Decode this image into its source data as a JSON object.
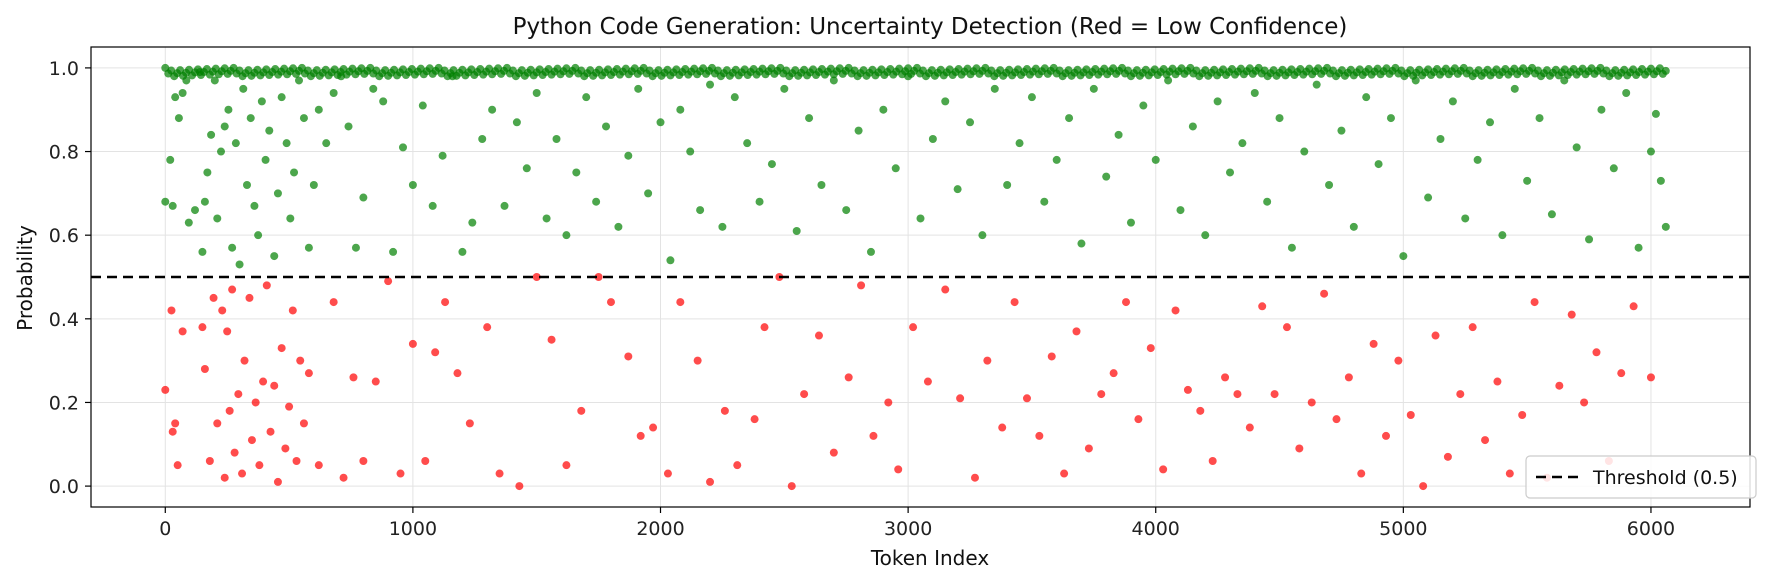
{
  "chart_data": {
    "type": "scatter",
    "title": "Python Code Generation: Uncertainty Detection (Red = Low Confidence)",
    "xlabel": "Token Index",
    "ylabel": "Probability",
    "xlim": [
      -300,
      6400
    ],
    "ylim": [
      -0.05,
      1.05
    ],
    "xticks": [
      0,
      1000,
      2000,
      3000,
      4000,
      5000,
      6000
    ],
    "yticks": [
      0.0,
      0.2,
      0.4,
      0.6,
      0.8,
      1.0
    ],
    "ytick_labels": [
      "0.0",
      "0.2",
      "0.4",
      "0.6",
      "0.8",
      "1.0"
    ],
    "grid": true,
    "threshold": {
      "value": 0.5,
      "label": "Threshold (0.5)",
      "style": "dashed",
      "color": "#000000"
    },
    "legend": {
      "placement": "bottom-right",
      "entries": [
        "Threshold (0.5)"
      ]
    },
    "token_count": 6060,
    "series": [
      {
        "color": "#008000",
        "points": [
          [
            0,
            0.68
          ],
          [
            20,
            0.78
          ],
          [
            30,
            0.67
          ],
          [
            40,
            0.93
          ],
          [
            55,
            0.88
          ],
          [
            70,
            0.94
          ],
          [
            85,
            0.97
          ],
          [
            95,
            0.63
          ],
          [
            120,
            0.66
          ],
          [
            140,
            0.99
          ],
          [
            150,
            0.56
          ],
          [
            160,
            0.68
          ],
          [
            170,
            0.75
          ],
          [
            185,
            0.84
          ],
          [
            200,
            0.97
          ],
          [
            210,
            0.64
          ],
          [
            225,
            0.8
          ],
          [
            240,
            0.86
          ],
          [
            255,
            0.9
          ],
          [
            270,
            0.57
          ],
          [
            285,
            0.82
          ],
          [
            300,
            0.53
          ],
          [
            315,
            0.95
          ],
          [
            330,
            0.72
          ],
          [
            345,
            0.88
          ],
          [
            360,
            0.67
          ],
          [
            375,
            0.6
          ],
          [
            390,
            0.92
          ],
          [
            405,
            0.78
          ],
          [
            420,
            0.85
          ],
          [
            440,
            0.55
          ],
          [
            455,
            0.7
          ],
          [
            470,
            0.93
          ],
          [
            490,
            0.82
          ],
          [
            505,
            0.64
          ],
          [
            520,
            0.75
          ],
          [
            540,
            0.97
          ],
          [
            560,
            0.88
          ],
          [
            580,
            0.57
          ],
          [
            600,
            0.72
          ],
          [
            620,
            0.9
          ],
          [
            650,
            0.82
          ],
          [
            680,
            0.94
          ],
          [
            710,
            0.98
          ],
          [
            740,
            0.86
          ],
          [
            770,
            0.57
          ],
          [
            800,
            0.69
          ],
          [
            840,
            0.95
          ],
          [
            880,
            0.92
          ],
          [
            920,
            0.56
          ],
          [
            960,
            0.81
          ],
          [
            1000,
            0.72
          ],
          [
            1040,
            0.91
          ],
          [
            1080,
            0.67
          ],
          [
            1120,
            0.79
          ],
          [
            1160,
            0.98
          ],
          [
            1200,
            0.56
          ],
          [
            1240,
            0.63
          ],
          [
            1280,
            0.83
          ],
          [
            1320,
            0.9
          ],
          [
            1370,
            0.67
          ],
          [
            1420,
            0.87
          ],
          [
            1460,
            0.76
          ],
          [
            1500,
            0.94
          ],
          [
            1540,
            0.64
          ],
          [
            1580,
            0.83
          ],
          [
            1620,
            0.6
          ],
          [
            1660,
            0.75
          ],
          [
            1700,
            0.93
          ],
          [
            1740,
            0.68
          ],
          [
            1780,
            0.86
          ],
          [
            1830,
            0.62
          ],
          [
            1870,
            0.79
          ],
          [
            1910,
            0.95
          ],
          [
            1950,
            0.7
          ],
          [
            2000,
            0.87
          ],
          [
            2040,
            0.54
          ],
          [
            2080,
            0.9
          ],
          [
            2120,
            0.8
          ],
          [
            2160,
            0.66
          ],
          [
            2200,
            0.96
          ],
          [
            2250,
            0.62
          ],
          [
            2300,
            0.93
          ],
          [
            2350,
            0.82
          ],
          [
            2400,
            0.68
          ],
          [
            2450,
            0.77
          ],
          [
            2500,
            0.95
          ],
          [
            2550,
            0.61
          ],
          [
            2600,
            0.88
          ],
          [
            2650,
            0.72
          ],
          [
            2700,
            0.97
          ],
          [
            2750,
            0.66
          ],
          [
            2800,
            0.85
          ],
          [
            2850,
            0.56
          ],
          [
            2900,
            0.9
          ],
          [
            2950,
            0.76
          ],
          [
            3000,
            0.98
          ],
          [
            3050,
            0.64
          ],
          [
            3100,
            0.83
          ],
          [
            3150,
            0.92
          ],
          [
            3200,
            0.71
          ],
          [
            3250,
            0.87
          ],
          [
            3300,
            0.6
          ],
          [
            3350,
            0.95
          ],
          [
            3400,
            0.72
          ],
          [
            3450,
            0.82
          ],
          [
            3500,
            0.93
          ],
          [
            3550,
            0.68
          ],
          [
            3600,
            0.78
          ],
          [
            3650,
            0.88
          ],
          [
            3700,
            0.58
          ],
          [
            3750,
            0.95
          ],
          [
            3800,
            0.74
          ],
          [
            3850,
            0.84
          ],
          [
            3900,
            0.63
          ],
          [
            3950,
            0.91
          ],
          [
            4000,
            0.78
          ],
          [
            4050,
            0.97
          ],
          [
            4100,
            0.66
          ],
          [
            4150,
            0.86
          ],
          [
            4200,
            0.6
          ],
          [
            4250,
            0.92
          ],
          [
            4300,
            0.75
          ],
          [
            4350,
            0.82
          ],
          [
            4400,
            0.94
          ],
          [
            4450,
            0.68
          ],
          [
            4500,
            0.88
          ],
          [
            4550,
            0.57
          ],
          [
            4600,
            0.8
          ],
          [
            4650,
            0.96
          ],
          [
            4700,
            0.72
          ],
          [
            4750,
            0.85
          ],
          [
            4800,
            0.62
          ],
          [
            4850,
            0.93
          ],
          [
            4900,
            0.77
          ],
          [
            4950,
            0.88
          ],
          [
            5000,
            0.55
          ],
          [
            5050,
            0.97
          ],
          [
            5100,
            0.69
          ],
          [
            5150,
            0.83
          ],
          [
            5200,
            0.92
          ],
          [
            5250,
            0.64
          ],
          [
            5300,
            0.78
          ],
          [
            5350,
            0.87
          ],
          [
            5400,
            0.6
          ],
          [
            5450,
            0.95
          ],
          [
            5500,
            0.73
          ],
          [
            5550,
            0.88
          ],
          [
            5600,
            0.65
          ],
          [
            5650,
            0.97
          ],
          [
            5700,
            0.81
          ],
          [
            5750,
            0.59
          ],
          [
            5800,
            0.9
          ],
          [
            5850,
            0.76
          ],
          [
            5900,
            0.94
          ],
          [
            5950,
            0.57
          ],
          [
            6000,
            0.8
          ],
          [
            6020,
            0.89
          ],
          [
            6040,
            0.73
          ],
          [
            6060,
            0.62
          ]
        ]
      },
      {
        "color": "#ff0000",
        "points": [
          [
            0,
            0.23
          ],
          [
            25,
            0.42
          ],
          [
            30,
            0.13
          ],
          [
            40,
            0.15
          ],
          [
            50,
            0.05
          ],
          [
            70,
            0.37
          ],
          [
            150,
            0.38
          ],
          [
            160,
            0.28
          ],
          [
            180,
            0.06
          ],
          [
            195,
            0.45
          ],
          [
            210,
            0.15
          ],
          [
            230,
            0.42
          ],
          [
            240,
            0.02
          ],
          [
            250,
            0.37
          ],
          [
            260,
            0.18
          ],
          [
            270,
            0.47
          ],
          [
            280,
            0.08
          ],
          [
            295,
            0.22
          ],
          [
            310,
            0.03
          ],
          [
            320,
            0.3
          ],
          [
            340,
            0.45
          ],
          [
            350,
            0.11
          ],
          [
            365,
            0.2
          ],
          [
            380,
            0.05
          ],
          [
            395,
            0.25
          ],
          [
            410,
            0.48
          ],
          [
            425,
            0.13
          ],
          [
            440,
            0.24
          ],
          [
            455,
            0.01
          ],
          [
            470,
            0.33
          ],
          [
            485,
            0.09
          ],
          [
            500,
            0.19
          ],
          [
            515,
            0.42
          ],
          [
            530,
            0.06
          ],
          [
            545,
            0.3
          ],
          [
            560,
            0.15
          ],
          [
            580,
            0.27
          ],
          [
            620,
            0.05
          ],
          [
            680,
            0.44
          ],
          [
            720,
            0.02
          ],
          [
            760,
            0.26
          ],
          [
            800,
            0.06
          ],
          [
            850,
            0.25
          ],
          [
            900,
            0.49
          ],
          [
            950,
            0.03
          ],
          [
            1000,
            0.34
          ],
          [
            1050,
            0.06
          ],
          [
            1090,
            0.32
          ],
          [
            1130,
            0.44
          ],
          [
            1180,
            0.27
          ],
          [
            1230,
            0.15
          ],
          [
            1300,
            0.38
          ],
          [
            1350,
            0.03
          ],
          [
            1430,
            0.0
          ],
          [
            1500,
            0.5
          ],
          [
            1560,
            0.35
          ],
          [
            1620,
            0.05
          ],
          [
            1680,
            0.18
          ],
          [
            1750,
            0.5
          ],
          [
            1800,
            0.44
          ],
          [
            1870,
            0.31
          ],
          [
            1920,
            0.12
          ],
          [
            1970,
            0.14
          ],
          [
            2030,
            0.03
          ],
          [
            2080,
            0.44
          ],
          [
            2150,
            0.3
          ],
          [
            2200,
            0.01
          ],
          [
            2260,
            0.18
          ],
          [
            2310,
            0.05
          ],
          [
            2380,
            0.16
          ],
          [
            2420,
            0.38
          ],
          [
            2480,
            0.5
          ],
          [
            2530,
            0.0
          ],
          [
            2580,
            0.22
          ],
          [
            2640,
            0.36
          ],
          [
            2700,
            0.08
          ],
          [
            2760,
            0.26
          ],
          [
            2810,
            0.48
          ],
          [
            2860,
            0.12
          ],
          [
            2920,
            0.2
          ],
          [
            2960,
            0.04
          ],
          [
            3020,
            0.38
          ],
          [
            3080,
            0.25
          ],
          [
            3150,
            0.47
          ],
          [
            3210,
            0.21
          ],
          [
            3270,
            0.02
          ],
          [
            3320,
            0.3
          ],
          [
            3380,
            0.14
          ],
          [
            3430,
            0.44
          ],
          [
            3480,
            0.21
          ],
          [
            3530,
            0.12
          ],
          [
            3580,
            0.31
          ],
          [
            3630,
            0.03
          ],
          [
            3680,
            0.37
          ],
          [
            3730,
            0.09
          ],
          [
            3780,
            0.22
          ],
          [
            3830,
            0.27
          ],
          [
            3880,
            0.44
          ],
          [
            3930,
            0.16
          ],
          [
            3980,
            0.33
          ],
          [
            4030,
            0.04
          ],
          [
            4080,
            0.42
          ],
          [
            4130,
            0.23
          ],
          [
            4180,
            0.18
          ],
          [
            4230,
            0.06
          ],
          [
            4280,
            0.26
          ],
          [
            4330,
            0.22
          ],
          [
            4380,
            0.14
          ],
          [
            4430,
            0.43
          ],
          [
            4480,
            0.22
          ],
          [
            4530,
            0.38
          ],
          [
            4580,
            0.09
          ],
          [
            4630,
            0.2
          ],
          [
            4680,
            0.46
          ],
          [
            4730,
            0.16
          ],
          [
            4780,
            0.26
          ],
          [
            4830,
            0.03
          ],
          [
            4880,
            0.34
          ],
          [
            4930,
            0.12
          ],
          [
            4980,
            0.3
          ],
          [
            5030,
            0.17
          ],
          [
            5080,
            0.0
          ],
          [
            5130,
            0.36
          ],
          [
            5180,
            0.07
          ],
          [
            5230,
            0.22
          ],
          [
            5280,
            0.38
          ],
          [
            5330,
            0.11
          ],
          [
            5380,
            0.25
          ],
          [
            5430,
            0.03
          ],
          [
            5480,
            0.17
          ],
          [
            5530,
            0.44
          ],
          [
            5580,
            0.02
          ],
          [
            5630,
            0.24
          ],
          [
            5680,
            0.41
          ],
          [
            5730,
            0.2
          ],
          [
            5780,
            0.32
          ],
          [
            5830,
            0.06
          ],
          [
            5880,
            0.27
          ],
          [
            5930,
            0.43
          ],
          [
            6000,
            0.26
          ]
        ]
      }
    ]
  }
}
